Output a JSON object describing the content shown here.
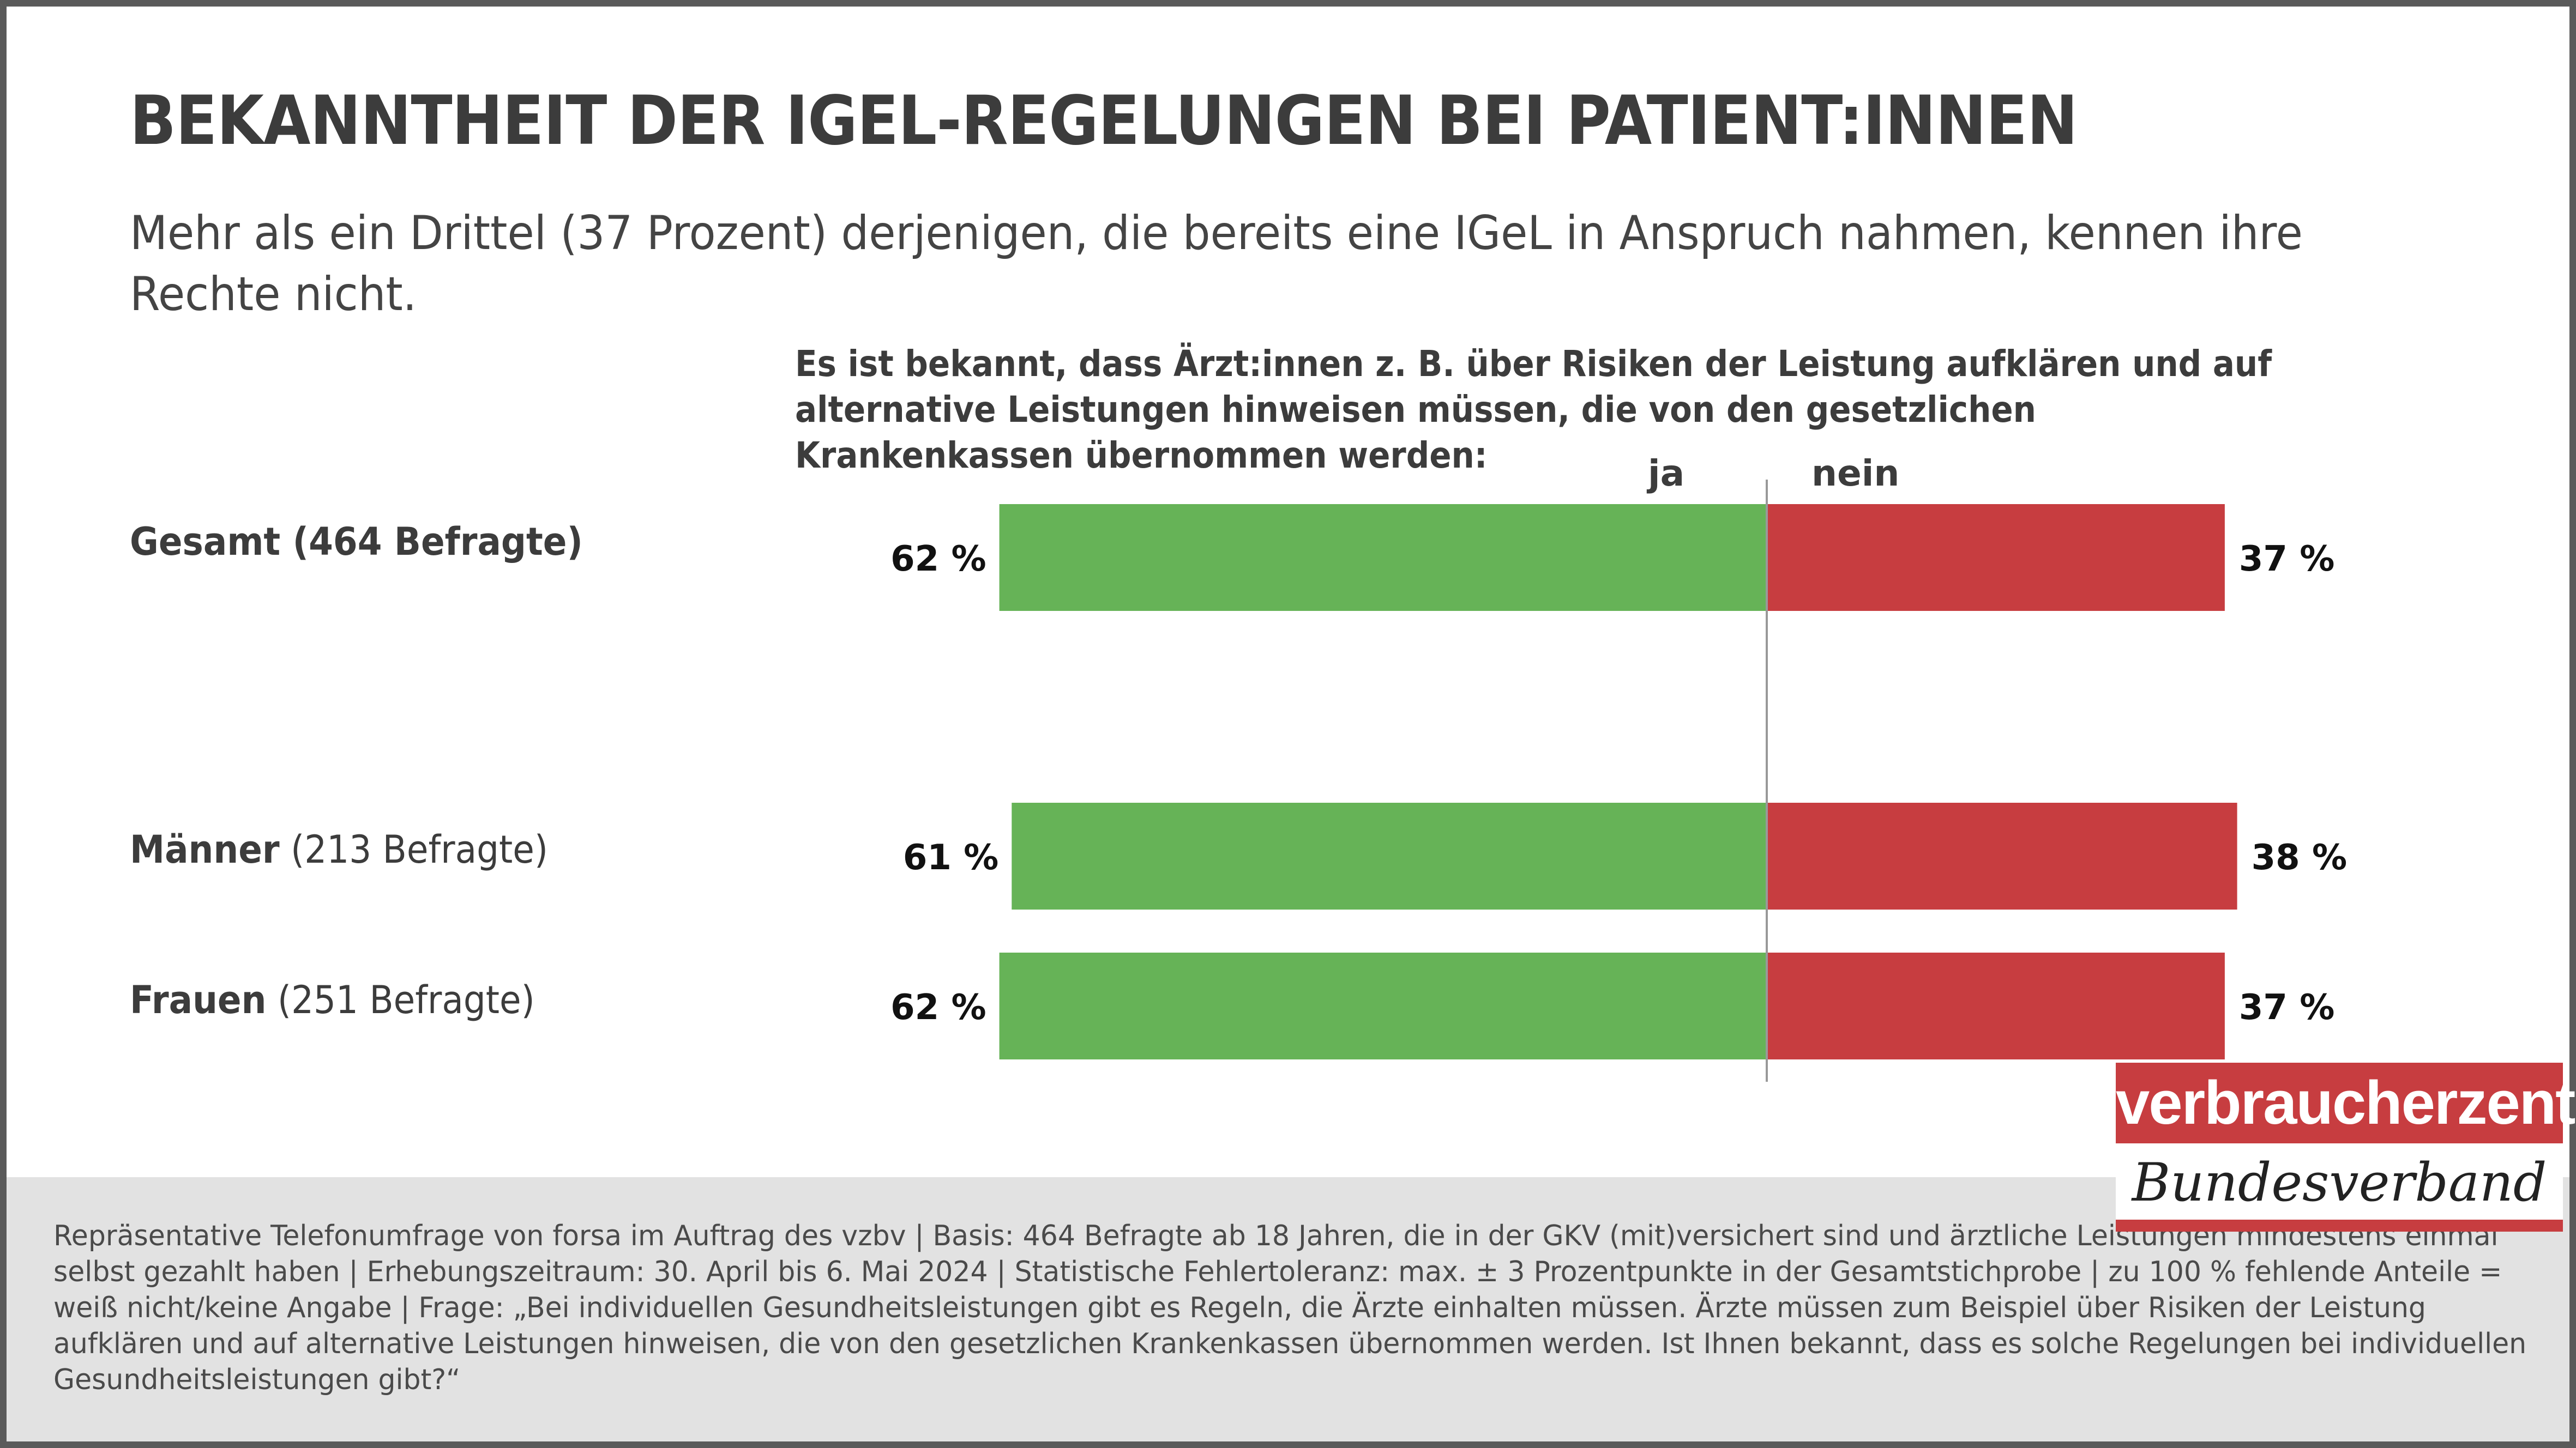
{
  "title": "BEKANNTHEIT DER IGEL-REGELUNGEN BEI PATIENT:INNEN",
  "subtitle": "Mehr als ein Drittel (37 Prozent) derjenigen, die bereits eine IGeL in Anspruch nahmen, kennen ihre Rechte nicht.",
  "question": "Es ist bekannt, dass Ärzt:innen z. B. über Risiken der Leistung aufklären und auf alternative Leistungen hinweisen müssen, die von den gesetzlichen Krankenkassen übernommen werden:",
  "colors": {
    "ja": "#66b357",
    "nein": "#c73d40",
    "divider": "#999999"
  },
  "chart_data": {
    "type": "bar",
    "orientation": "horizontal-diverging",
    "categories": [
      "Gesamt (464 Befragte)",
      "Männer (213 Befragte)",
      "Frauen (251 Befragte)"
    ],
    "category_parts": [
      {
        "strong": "Gesamt (464 Befragte)",
        "normal": ""
      },
      {
        "strong": "Männer",
        "normal": " (213 Befragte)"
      },
      {
        "strong": "Frauen",
        "normal": " (251 Befragte)"
      }
    ],
    "series": [
      {
        "name": "ja",
        "values": [
          62,
          61,
          62
        ],
        "labels": [
          "62 %",
          "61 %",
          "62 %"
        ]
      },
      {
        "name": "nein",
        "values": [
          37,
          38,
          37
        ],
        "labels": [
          "37 %",
          "38 %",
          "37 %"
        ]
      }
    ],
    "legend": [
      "ja",
      "nein"
    ],
    "legend_placement": "top",
    "xlabel": "",
    "ylabel": "",
    "unit": "%"
  },
  "footer": {
    "text": "Repräsentative Telefonumfrage von forsa im Auftrag des vzbv | Basis: 464 Befragte ab 18 Jahren, die in der GKV (mit)versichert sind und ärztliche Leistungen mindestens einmal selbst gezahlt haben | Erhebungszeitraum: 30. April bis 6. Mai 2024 | Statistische Fehlertoleranz: max. ± 3 Prozentpunkte in der Gesamtstichprobe | zu 100 % fehlende Anteile = weiß nicht/keine Angabe | Frage: „Bei individuellen Gesundheitsleistungen gibt es Regeln, die Ärzte einhalten müssen. Ärzte müssen zum Beispiel über Risiken der Leistung aufklären und auf alternative Leistungen hinweisen, die von den gesetzlichen Krankenkassen übernommen werden. Ist Ihnen bekannt, dass es solche Regelungen bei individuellen Gesundheitsleistungen gibt?“"
  },
  "logo": {
    "top": "verbraucherzentrale",
    "bottom": "Bundesverband"
  }
}
